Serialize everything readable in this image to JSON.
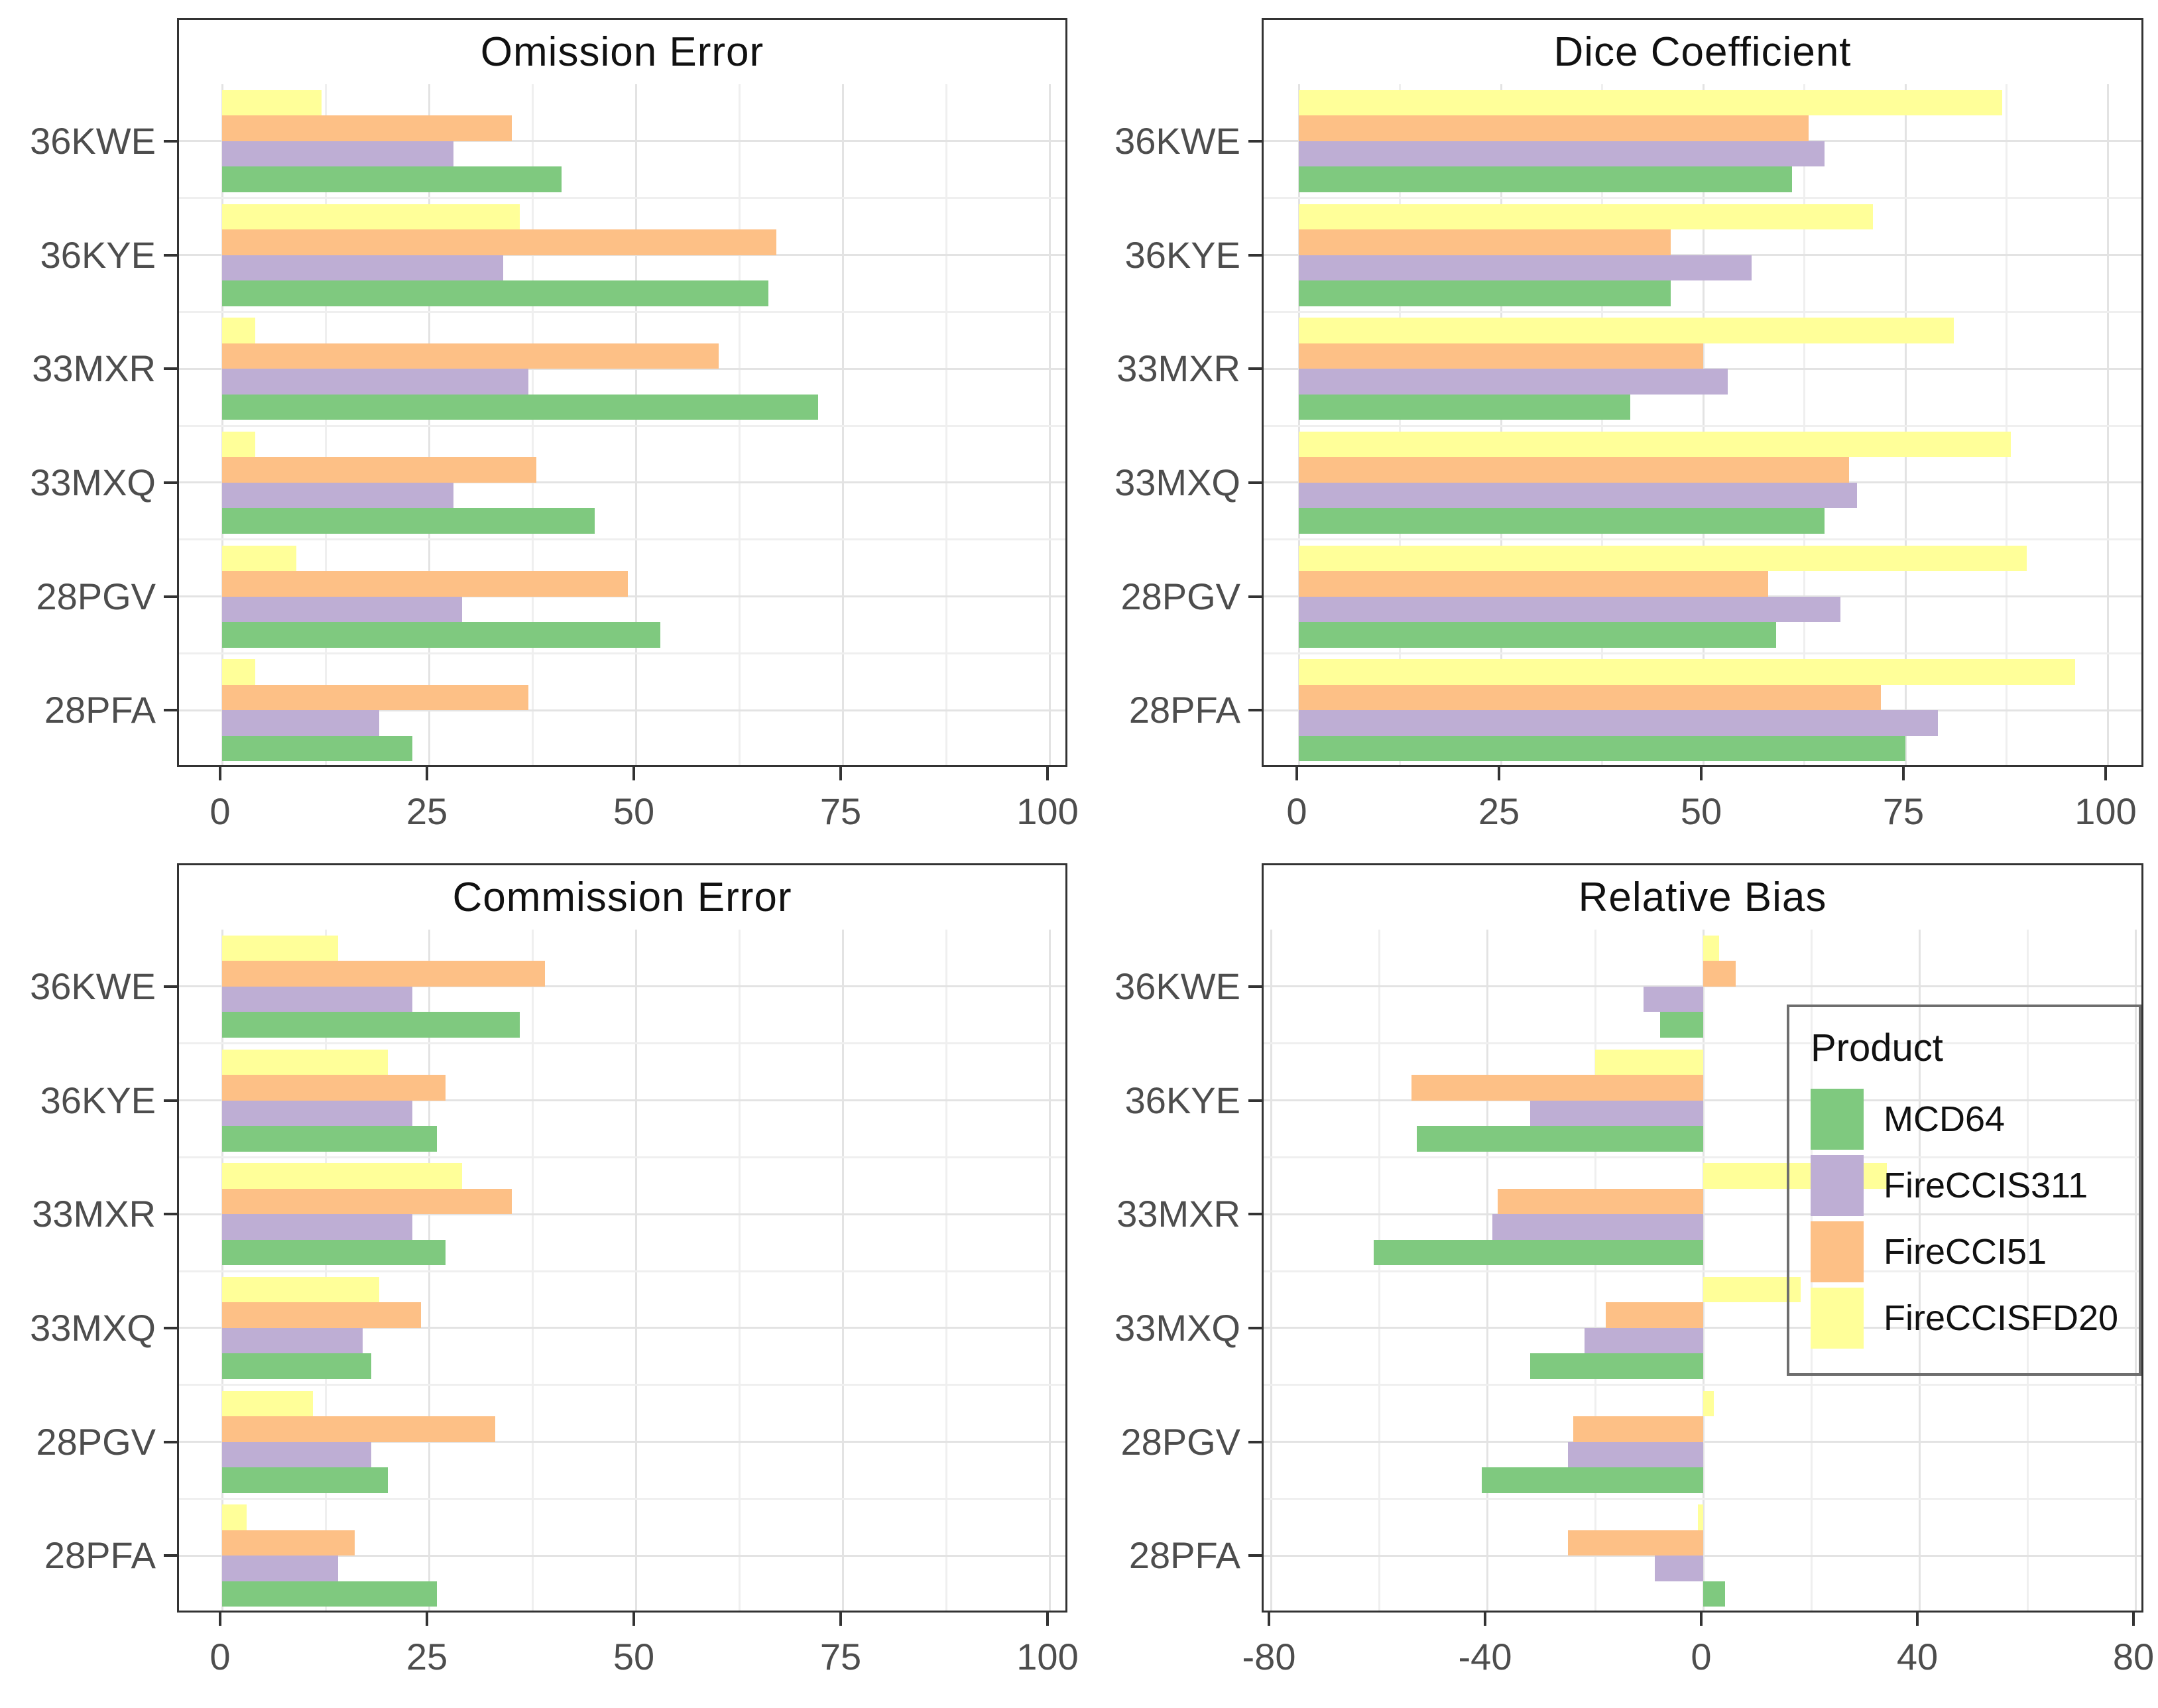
{
  "figure_title": "",
  "palette": {
    "MCD64": "#7FC97F",
    "FireCCIS311": "#BEAED4",
    "FireCCI51": "#FDC086",
    "FireCCISFD20": "#FFFF99"
  },
  "style_colors": {
    "panel_border": "#333333",
    "grid_major": "#e3e3e3",
    "grid_minor": "#efefef",
    "axis_text": "#4d4d4d",
    "legend_border": "#6e6e6e"
  },
  "sites": [
    "36KWE",
    "36KYE",
    "33MXR",
    "33MXQ",
    "28PGV",
    "28PFA"
  ],
  "legend": {
    "title": "Product",
    "items": [
      {
        "label": "MCD64",
        "color": "#7FC97F"
      },
      {
        "label": "FireCCIS311",
        "color": "#BEAED4"
      },
      {
        "label": "FireCCI51",
        "color": "#FDC086"
      },
      {
        "label": "FireCCISFD20",
        "color": "#FFFF99"
      }
    ]
  },
  "chart_data": [
    {
      "type": "bar",
      "orientation": "horizontal",
      "title": "Omission Error",
      "categories": [
        "36KWE",
        "36KYE",
        "33MXR",
        "33MXQ",
        "28PGV",
        "28PFA"
      ],
      "xlim": [
        0,
        100
      ],
      "xticks": [
        0,
        25,
        50,
        75,
        100
      ],
      "xtick_labels": [
        "0",
        "25",
        "50",
        "75",
        "100"
      ],
      "minor_step": 12.5,
      "grid": true,
      "series": [
        {
          "name": "MCD64",
          "color": "#7FC97F",
          "values": [
            41,
            66,
            72,
            45,
            53,
            23
          ]
        },
        {
          "name": "FireCCIS311",
          "color": "#BEAED4",
          "values": [
            28,
            34,
            37,
            28,
            29,
            19
          ]
        },
        {
          "name": "FireCCI51",
          "color": "#FDC086",
          "values": [
            35,
            67,
            60,
            38,
            49,
            37
          ]
        },
        {
          "name": "FireCCISFD20",
          "color": "#FFFF99",
          "values": [
            12,
            36,
            4,
            4,
            9,
            4
          ]
        }
      ]
    },
    {
      "type": "bar",
      "orientation": "horizontal",
      "title": "Dice Coefficient",
      "categories": [
        "36KWE",
        "36KYE",
        "33MXR",
        "33MXQ",
        "28PGV",
        "28PFA"
      ],
      "xlim": [
        0,
        100
      ],
      "xticks": [
        0,
        25,
        50,
        75,
        100
      ],
      "xtick_labels": [
        "0",
        "25",
        "50",
        "75",
        "100"
      ],
      "minor_step": 12.5,
      "grid": true,
      "series": [
        {
          "name": "MCD64",
          "color": "#7FC97F",
          "values": [
            61,
            46,
            41,
            65,
            59,
            75
          ]
        },
        {
          "name": "FireCCIS311",
          "color": "#BEAED4",
          "values": [
            65,
            56,
            53,
            69,
            67,
            79
          ]
        },
        {
          "name": "FireCCI51",
          "color": "#FDC086",
          "values": [
            63,
            46,
            50,
            68,
            58,
            72
          ]
        },
        {
          "name": "FireCCISFD20",
          "color": "#FFFF99",
          "values": [
            87,
            71,
            81,
            88,
            90,
            96
          ]
        }
      ]
    },
    {
      "type": "bar",
      "orientation": "horizontal",
      "title": "Commission Error",
      "categories": [
        "36KWE",
        "36KYE",
        "33MXR",
        "33MXQ",
        "28PGV",
        "28PFA"
      ],
      "xlim": [
        0,
        100
      ],
      "xticks": [
        0,
        25,
        50,
        75,
        100
      ],
      "xtick_labels": [
        "0",
        "25",
        "50",
        "75",
        "100"
      ],
      "minor_step": 12.5,
      "grid": true,
      "series": [
        {
          "name": "MCD64",
          "color": "#7FC97F",
          "values": [
            36,
            26,
            27,
            18,
            20,
            26
          ]
        },
        {
          "name": "FireCCIS311",
          "color": "#BEAED4",
          "values": [
            23,
            23,
            23,
            17,
            18,
            14
          ]
        },
        {
          "name": "FireCCI51",
          "color": "#FDC086",
          "values": [
            39,
            27,
            35,
            24,
            33,
            16
          ]
        },
        {
          "name": "FireCCISFD20",
          "color": "#FFFF99",
          "values": [
            14,
            20,
            29,
            19,
            11,
            3
          ]
        }
      ]
    },
    {
      "type": "bar",
      "orientation": "horizontal",
      "title": "Relative Bias",
      "categories": [
        "36KWE",
        "36KYE",
        "33MXR",
        "33MXQ",
        "28PGV",
        "28PFA"
      ],
      "xlim": [
        -80,
        80
      ],
      "xticks": [
        -80,
        -40,
        0,
        40,
        80
      ],
      "xtick_labels": [
        "-80",
        "-40",
        "0",
        "40",
        "80"
      ],
      "minor_step": 20,
      "grid": true,
      "legend_inside": true,
      "series": [
        {
          "name": "MCD64",
          "color": "#7FC97F",
          "values": [
            -8,
            -53,
            -61,
            -32,
            -41,
            4
          ]
        },
        {
          "name": "FireCCIS311",
          "color": "#BEAED4",
          "values": [
            -11,
            -32,
            -39,
            -22,
            -25,
            -9
          ]
        },
        {
          "name": "FireCCI51",
          "color": "#FDC086",
          "values": [
            6,
            -54,
            -38,
            -18,
            -24,
            -25
          ]
        },
        {
          "name": "FireCCISFD20",
          "color": "#FFFF99",
          "values": [
            3,
            -20,
            34,
            18,
            2,
            -1
          ]
        }
      ]
    }
  ]
}
